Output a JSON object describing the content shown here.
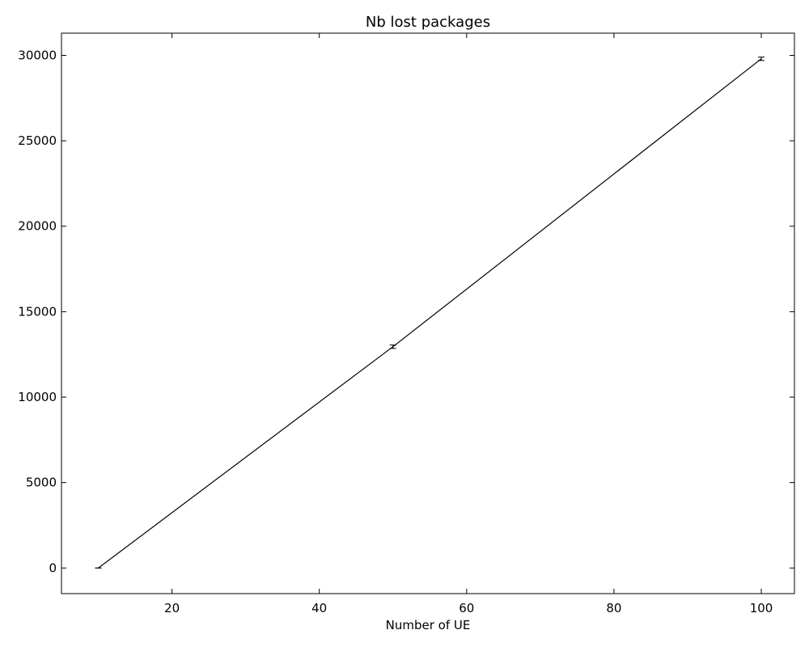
{
  "chart_data": {
    "type": "line",
    "title": "Nb lost packages",
    "xlabel": "Number of UE",
    "ylabel": "",
    "xlim": [
      5,
      104.5
    ],
    "ylim": [
      -1500,
      31300
    ],
    "xticks": [
      20,
      40,
      60,
      80,
      100
    ],
    "yticks": [
      0,
      5000,
      10000,
      15000,
      20000,
      25000,
      30000
    ],
    "grid": false,
    "series": [
      {
        "name": "",
        "color": "#000000",
        "x": [
          10,
          50,
          100
        ],
        "y": [
          0,
          12950,
          29800
        ],
        "yerr": [
          0,
          100,
          100
        ]
      }
    ]
  }
}
